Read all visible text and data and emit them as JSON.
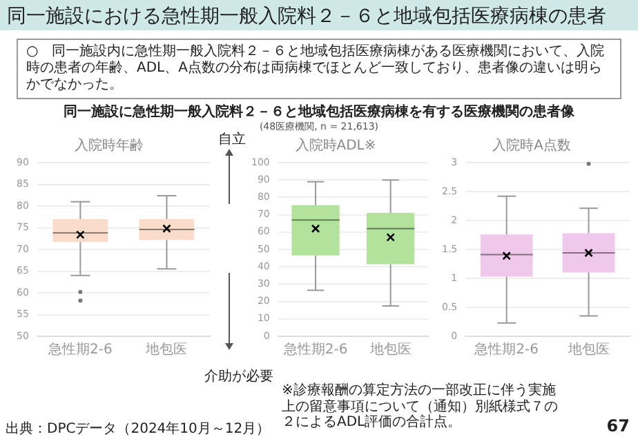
{
  "chart_data": [
    {
      "type": "other",
      "title": "同一施設における急性期一般入院料２－６と地域包括医療病棟の患者",
      "subtitle": "○　同一施設内に急性期一般入院料２－６と地域包括医療病棟がある医療機関において、入院時の患者の年齢、ADL、A点数の分布は両病棟でほとんど一致しており、患者像の違いは明らかでなかった。",
      "annotations": [
        "同一施設に急性期一般入院料２－６と地域包括医療病棟を有する医療機関の患者像",
        "(48医療機関, n = 21,613)",
        "出典：DPCデータ（2024年10月～12月）",
        "67"
      ]
    },
    {
      "type": "box",
      "title": "入院時年齢",
      "categories": [
        "急性期2-6",
        "地包医"
      ],
      "color": "#fbdcca",
      "ylim": [
        50,
        90
      ],
      "yticks": [
        50,
        55,
        60,
        65,
        70,
        75,
        80,
        85,
        90
      ],
      "grid": "y",
      "boxes": [
        {
          "low": 64,
          "q1": 71.7,
          "median": 73.8,
          "q3": 77,
          "high": 81,
          "mean": 73.4,
          "outliers": [
            60.2,
            58.2
          ]
        },
        {
          "low": 65.5,
          "q1": 72.2,
          "median": 74.6,
          "q3": 77,
          "high": 82.4,
          "mean": 74.8
        }
      ]
    },
    {
      "type": "box",
      "title": "入院時ADL※",
      "categories": [
        "急性期2-6",
        "地包医"
      ],
      "color": "#b3e29c",
      "ylim": [
        0,
        100
      ],
      "yticks": [
        0,
        10,
        20,
        30,
        40,
        50,
        60,
        70,
        80,
        90,
        100
      ],
      "grid": "y",
      "annotations": [
        "自立",
        "介助が必要",
        "※診療報酬の算定方法の一部改正に伴う実施上の留意事項について（通知）別紙様式７の２によるADL評価の合計点。"
      ],
      "boxes": [
        {
          "low": 26.5,
          "q1": 46.5,
          "median": 67,
          "q3": 75.5,
          "high": 89,
          "mean": 62
        },
        {
          "low": 17.5,
          "q1": 41.5,
          "median": 62,
          "q3": 71,
          "high": 90,
          "mean": 57
        }
      ]
    },
    {
      "type": "box",
      "title": "入院時A点数",
      "categories": [
        "急性期2-6",
        "地包医"
      ],
      "color": "#f0c8ec",
      "ylim": [
        0,
        3
      ],
      "yticks": [
        0,
        0.5,
        1,
        1.5,
        2,
        2.5,
        3
      ],
      "grid": "y",
      "boxes": [
        {
          "low": 0.23,
          "q1": 1.03,
          "median": 1.41,
          "q3": 1.76,
          "high": 2.42,
          "mean": 1.39
        },
        {
          "low": 0.35,
          "q1": 1.1,
          "median": 1.44,
          "q3": 1.78,
          "high": 2.21,
          "mean": 1.44,
          "outliers": [
            2.98
          ]
        }
      ]
    }
  ]
}
